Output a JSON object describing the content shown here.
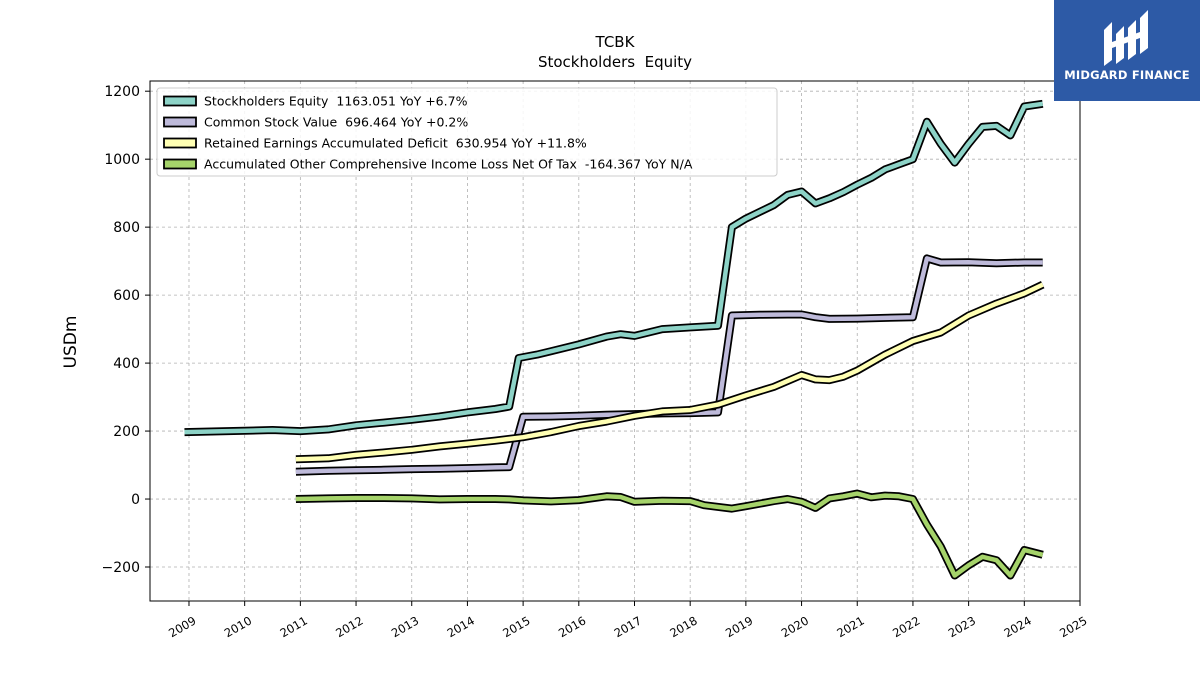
{
  "chart_data": {
    "type": "line",
    "title": "TCBK",
    "subtitle": "Stockholders  Equity",
    "ylabel": "USDm",
    "xlabel": "",
    "xlim": [
      2008.3,
      2025.0
    ],
    "ylim": [
      -300,
      1230
    ],
    "x_ticks": [
      2009,
      2010,
      2011,
      2012,
      2013,
      2014,
      2015,
      2016,
      2017,
      2018,
      2019,
      2020,
      2021,
      2022,
      2023,
      2024,
      2025
    ],
    "y_ticks": [
      -200,
      0,
      200,
      400,
      600,
      800,
      1000,
      1200
    ],
    "y_tick_labels": [
      "−200",
      "0",
      "200",
      "400",
      "600",
      "800",
      "1000",
      "1200"
    ],
    "grid": true,
    "legend_placement": "top-left",
    "series": [
      {
        "name": "Stockholders Equity  1163.051 YoY +6.7%",
        "color": "#8dd3c7",
        "points": [
          [
            2008.92,
            197
          ],
          [
            2009.5,
            199
          ],
          [
            2010.0,
            201
          ],
          [
            2010.5,
            203
          ],
          [
            2011.0,
            200
          ],
          [
            2011.5,
            205
          ],
          [
            2012.0,
            217
          ],
          [
            2012.5,
            225
          ],
          [
            2013.0,
            233
          ],
          [
            2013.5,
            243
          ],
          [
            2014.0,
            255
          ],
          [
            2014.5,
            265
          ],
          [
            2014.75,
            272
          ],
          [
            2014.92,
            415
          ],
          [
            2015.25,
            425
          ],
          [
            2015.5,
            435
          ],
          [
            2016.0,
            455
          ],
          [
            2016.5,
            478
          ],
          [
            2016.75,
            485
          ],
          [
            2017.0,
            480
          ],
          [
            2017.5,
            500
          ],
          [
            2018.0,
            505
          ],
          [
            2018.5,
            510
          ],
          [
            2018.75,
            800
          ],
          [
            2019.0,
            825
          ],
          [
            2019.5,
            865
          ],
          [
            2019.75,
            895
          ],
          [
            2020.0,
            905
          ],
          [
            2020.25,
            870
          ],
          [
            2020.5,
            885
          ],
          [
            2020.75,
            903
          ],
          [
            2021.0,
            925
          ],
          [
            2021.25,
            945
          ],
          [
            2021.5,
            970
          ],
          [
            2021.75,
            985
          ],
          [
            2022.0,
            1000
          ],
          [
            2022.25,
            1110
          ],
          [
            2022.5,
            1045
          ],
          [
            2022.75,
            990
          ],
          [
            2023.0,
            1045
          ],
          [
            2023.25,
            1095
          ],
          [
            2023.5,
            1098
          ],
          [
            2023.75,
            1070
          ],
          [
            2024.0,
            1155
          ],
          [
            2024.33,
            1163
          ]
        ]
      },
      {
        "name": "Common Stock Value  696.464 YoY +0.2%",
        "color": "#bebada",
        "points": [
          [
            2010.92,
            80
          ],
          [
            2011.5,
            83
          ],
          [
            2012.0,
            85
          ],
          [
            2012.5,
            86
          ],
          [
            2013.0,
            88
          ],
          [
            2013.5,
            89
          ],
          [
            2014.0,
            91
          ],
          [
            2014.5,
            93
          ],
          [
            2014.75,
            94
          ],
          [
            2015.0,
            242
          ],
          [
            2015.5,
            243
          ],
          [
            2016.0,
            245
          ],
          [
            2016.5,
            248
          ],
          [
            2017.0,
            250
          ],
          [
            2017.5,
            252
          ],
          [
            2018.0,
            253
          ],
          [
            2018.25,
            254
          ],
          [
            2018.5,
            255
          ],
          [
            2018.75,
            540
          ],
          [
            2019.25,
            542
          ],
          [
            2019.75,
            543
          ],
          [
            2020.0,
            543
          ],
          [
            2020.25,
            535
          ],
          [
            2020.5,
            530
          ],
          [
            2021.0,
            531
          ],
          [
            2021.5,
            533
          ],
          [
            2022.0,
            535
          ],
          [
            2022.25,
            708
          ],
          [
            2022.5,
            696
          ],
          [
            2023.0,
            697
          ],
          [
            2023.5,
            694
          ],
          [
            2024.0,
            696
          ],
          [
            2024.33,
            696
          ]
        ]
      },
      {
        "name": "Retained Earnings Accumulated Deficit  630.954 YoY +11.8%",
        "color": "#ffffb3",
        "points": [
          [
            2010.92,
            117
          ],
          [
            2011.5,
            120
          ],
          [
            2012.0,
            130
          ],
          [
            2012.5,
            137
          ],
          [
            2013.0,
            145
          ],
          [
            2013.5,
            155
          ],
          [
            2014.0,
            163
          ],
          [
            2014.5,
            172
          ],
          [
            2015.0,
            182
          ],
          [
            2015.5,
            197
          ],
          [
            2016.0,
            215
          ],
          [
            2016.5,
            228
          ],
          [
            2017.0,
            245
          ],
          [
            2017.5,
            258
          ],
          [
            2018.0,
            262
          ],
          [
            2018.5,
            278
          ],
          [
            2019.0,
            305
          ],
          [
            2019.5,
            330
          ],
          [
            2020.0,
            365
          ],
          [
            2020.25,
            352
          ],
          [
            2020.5,
            350
          ],
          [
            2020.75,
            360
          ],
          [
            2021.0,
            378
          ],
          [
            2021.5,
            425
          ],
          [
            2022.0,
            465
          ],
          [
            2022.5,
            490
          ],
          [
            2023.0,
            540
          ],
          [
            2023.5,
            575
          ],
          [
            2024.0,
            605
          ],
          [
            2024.33,
            631
          ]
        ]
      },
      {
        "name": "Accumulated Other Comprehensive Income Loss Net Of Tax  -164.367 YoY N/A",
        "color": "#a5d36a",
        "points": [
          [
            2010.92,
            0
          ],
          [
            2011.5,
            2
          ],
          [
            2012.0,
            3
          ],
          [
            2012.5,
            3
          ],
          [
            2013.0,
            2
          ],
          [
            2013.5,
            -1
          ],
          [
            2014.0,
            0
          ],
          [
            2014.5,
            0
          ],
          [
            2014.75,
            -1
          ],
          [
            2015.0,
            -4
          ],
          [
            2015.5,
            -7
          ],
          [
            2016.0,
            -3
          ],
          [
            2016.5,
            8
          ],
          [
            2016.75,
            6
          ],
          [
            2017.0,
            -8
          ],
          [
            2017.5,
            -5
          ],
          [
            2018.0,
            -6
          ],
          [
            2018.25,
            -18
          ],
          [
            2018.75,
            -28
          ],
          [
            2019.0,
            -21
          ],
          [
            2019.5,
            -6
          ],
          [
            2019.75,
            0
          ],
          [
            2020.0,
            -8
          ],
          [
            2020.25,
            -26
          ],
          [
            2020.5,
            2
          ],
          [
            2020.75,
            8
          ],
          [
            2021.0,
            16
          ],
          [
            2021.25,
            5
          ],
          [
            2021.5,
            10
          ],
          [
            2021.75,
            8
          ],
          [
            2022.0,
            0
          ],
          [
            2022.25,
            -75
          ],
          [
            2022.5,
            -140
          ],
          [
            2022.75,
            -225
          ],
          [
            2023.0,
            -195
          ],
          [
            2023.25,
            -170
          ],
          [
            2023.5,
            -180
          ],
          [
            2023.75,
            -225
          ],
          [
            2024.0,
            -150
          ],
          [
            2024.33,
            -164
          ]
        ]
      }
    ]
  },
  "logo": {
    "text": "MIDGARD FINANCE",
    "background": "#2d5aa6"
  }
}
